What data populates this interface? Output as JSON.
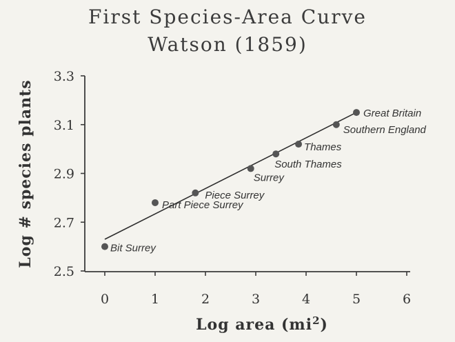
{
  "chart_data": {
    "type": "scatter",
    "title": "First Species-Area Curve",
    "subtitle": "Watson (1859)",
    "xlabel": "Log area (mi2)",
    "xlabel_base": "Log area (mi",
    "xlabel_sup": "2",
    "xlabel_close": ")",
    "ylabel": "Log # species plants",
    "xlim": [
      0,
      6
    ],
    "ylim": [
      2.5,
      3.3
    ],
    "xticks": [
      0,
      1,
      2,
      3,
      4,
      5,
      6
    ],
    "yticks": [
      2.5,
      2.7,
      2.9,
      3.1,
      3.3
    ],
    "grid": false,
    "points": [
      {
        "label": "Bit Surrey",
        "x": 0.0,
        "y": 2.6
      },
      {
        "label": "Part Piece Surrey",
        "x": 1.0,
        "y": 2.78
      },
      {
        "label": "Piece Surrey",
        "x": 1.8,
        "y": 2.82
      },
      {
        "label": "Surrey",
        "x": 2.9,
        "y": 2.92
      },
      {
        "label": "South Thames",
        "x": 3.4,
        "y": 2.98
      },
      {
        "label": "Thames",
        "x": 3.85,
        "y": 3.02
      },
      {
        "label": "Southern England",
        "x": 4.6,
        "y": 3.1
      },
      {
        "label": "Great Britain",
        "x": 5.0,
        "y": 3.15
      }
    ],
    "fit_line": {
      "x": [
        0,
        5.0
      ],
      "y": [
        2.63,
        3.15
      ]
    }
  }
}
